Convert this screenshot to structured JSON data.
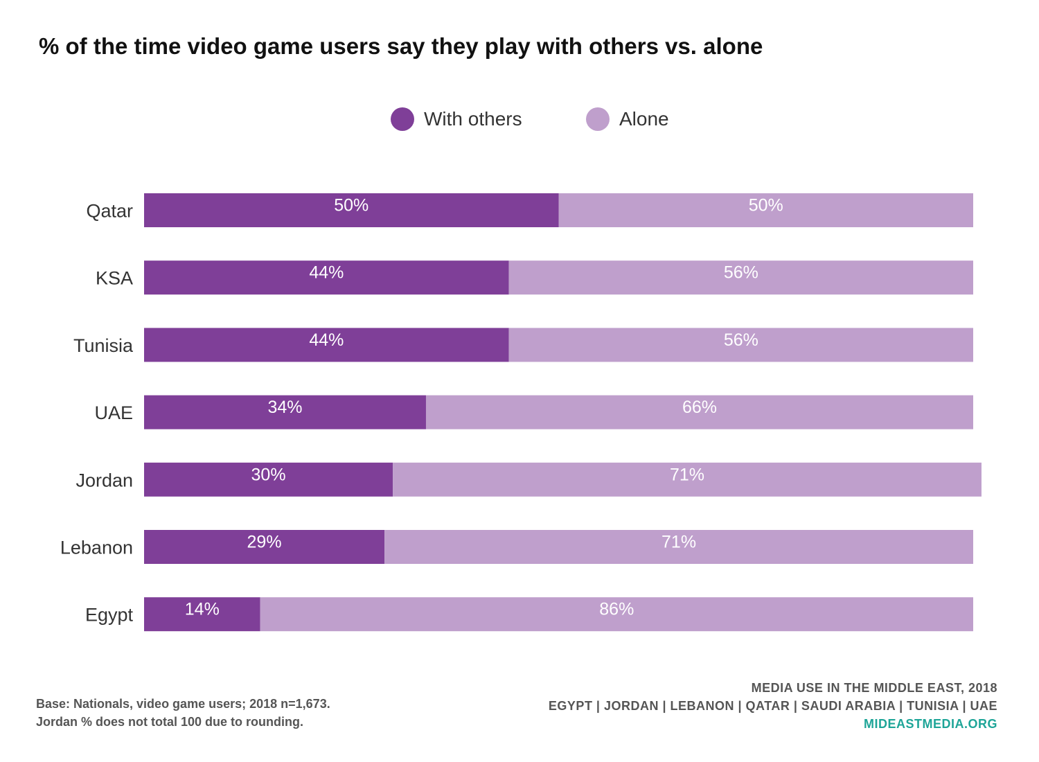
{
  "chart_data": {
    "type": "bar",
    "orientation": "horizontal",
    "stacked": true,
    "title": "% of the time video game users say they play with others vs. alone",
    "categories": [
      "Qatar",
      "KSA",
      "Tunisia",
      "UAE",
      "Jordan",
      "Lebanon",
      "Egypt"
    ],
    "series": [
      {
        "name": "With others",
        "color": "#7f3f98",
        "values": [
          50,
          44,
          44,
          34,
          30,
          29,
          14
        ],
        "labels": [
          "50%",
          "44%",
          "44%",
          "34%",
          "30%",
          "29%",
          "14%"
        ]
      },
      {
        "name": "Alone",
        "color": "#bf9fcc",
        "values": [
          50,
          56,
          56,
          66,
          71,
          71,
          86
        ],
        "labels": [
          "50%",
          "56%",
          "56%",
          "66%",
          "71%",
          "71%",
          "86%"
        ]
      }
    ],
    "xlim": [
      0,
      100
    ],
    "legend": "top-center",
    "grid": false
  },
  "footer": {
    "base_line1": "Base: Nationals, video game users; 2018 n=1,673.",
    "base_line2": "Jordan % does not total 100 due to rounding.",
    "source_title": "MEDIA USE IN THE MIDDLE EAST, 2018",
    "source_countries": "EGYPT | JORDAN | LEBANON | QATAR | SAUDI ARABIA | TUNISIA | UAE",
    "source_site": "MIDEASTMEDIA.ORG"
  }
}
